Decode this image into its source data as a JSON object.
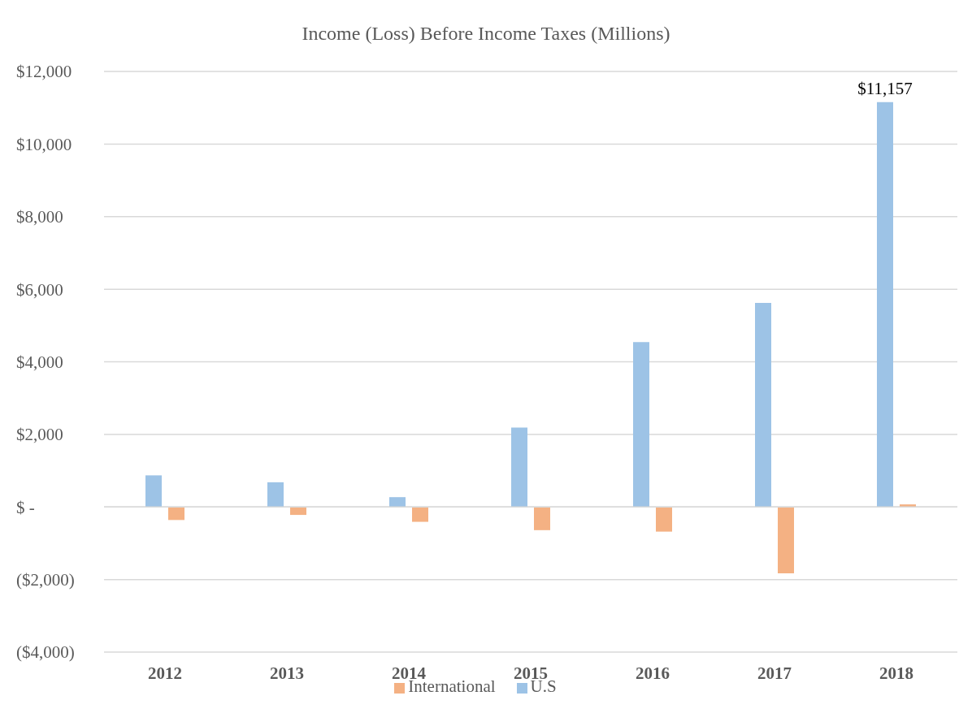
{
  "chart_data": {
    "type": "bar",
    "title": "Income (Loss) Before Income Taxes (Millions)",
    "categories": [
      "2012",
      "2013",
      "2014",
      "2015",
      "2016",
      "2017",
      "2018"
    ],
    "series": [
      {
        "name": "U.S",
        "color": "#9dc3e6",
        "values": [
          870,
          680,
          270,
          2190,
          4540,
          5620,
          11157
        ],
        "value_labels": [
          null,
          null,
          null,
          null,
          null,
          null,
          "$11,157"
        ]
      },
      {
        "name": "International",
        "color": "#f4b183",
        "values": [
          -360,
          -220,
          -410,
          -640,
          -680,
          -1830,
          70
        ]
      }
    ],
    "ylim": [
      -4000,
      12000
    ],
    "yticks": [
      {
        "value": -4000,
        "label": "($4,000)"
      },
      {
        "value": -2000,
        "label": "($2,000)"
      },
      {
        "value": 0,
        "label": "$ -"
      },
      {
        "value": 2000,
        "label": "$2,000"
      },
      {
        "value": 4000,
        "label": "$4,000"
      },
      {
        "value": 6000,
        "label": "$6,000"
      },
      {
        "value": 8000,
        "label": "$8,000"
      },
      {
        "value": 10000,
        "label": "$10,000"
      },
      {
        "value": 12000,
        "label": "$12,000"
      }
    ],
    "grid": "y",
    "legend": "bottom"
  }
}
